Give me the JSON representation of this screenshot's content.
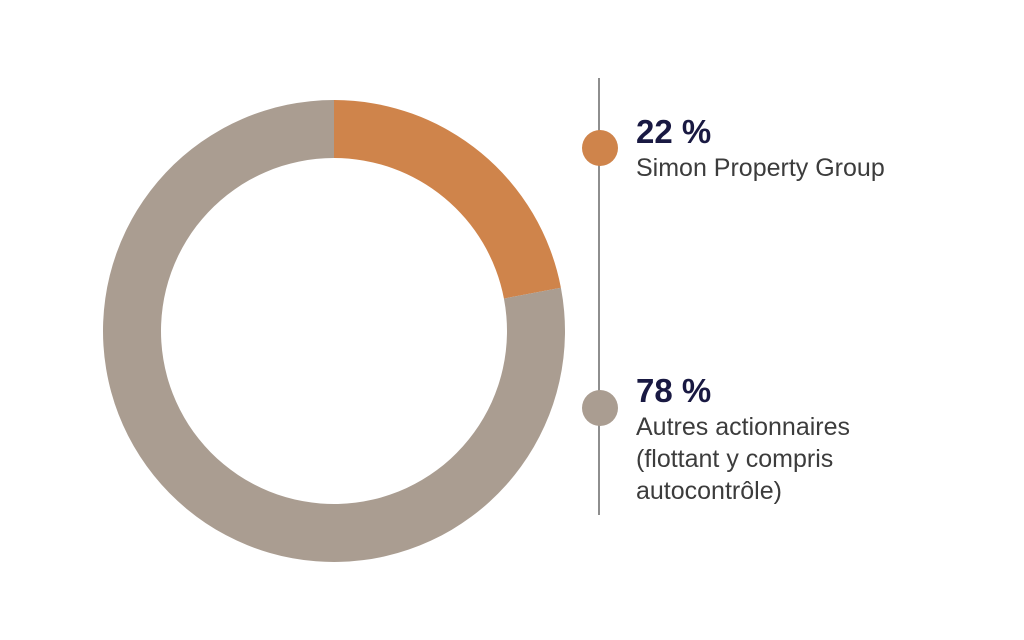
{
  "chart_data": {
    "type": "pie",
    "variant": "donut",
    "start_angle_deg": 0,
    "direction": "clockwise",
    "series": [
      {
        "name": "Simon Property Group",
        "value": 22,
        "value_label": "22 %",
        "label": "Simon Property Group",
        "color": "#cf844b"
      },
      {
        "name": "Autres actionnaires (flottant y compris autocontrôle)",
        "value": 78,
        "value_label": "78 %",
        "label": "Autres actionnaires\n(flottant y compris\nautocontrôle)",
        "color": "#aa9d91"
      }
    ],
    "legend_position": "right"
  }
}
